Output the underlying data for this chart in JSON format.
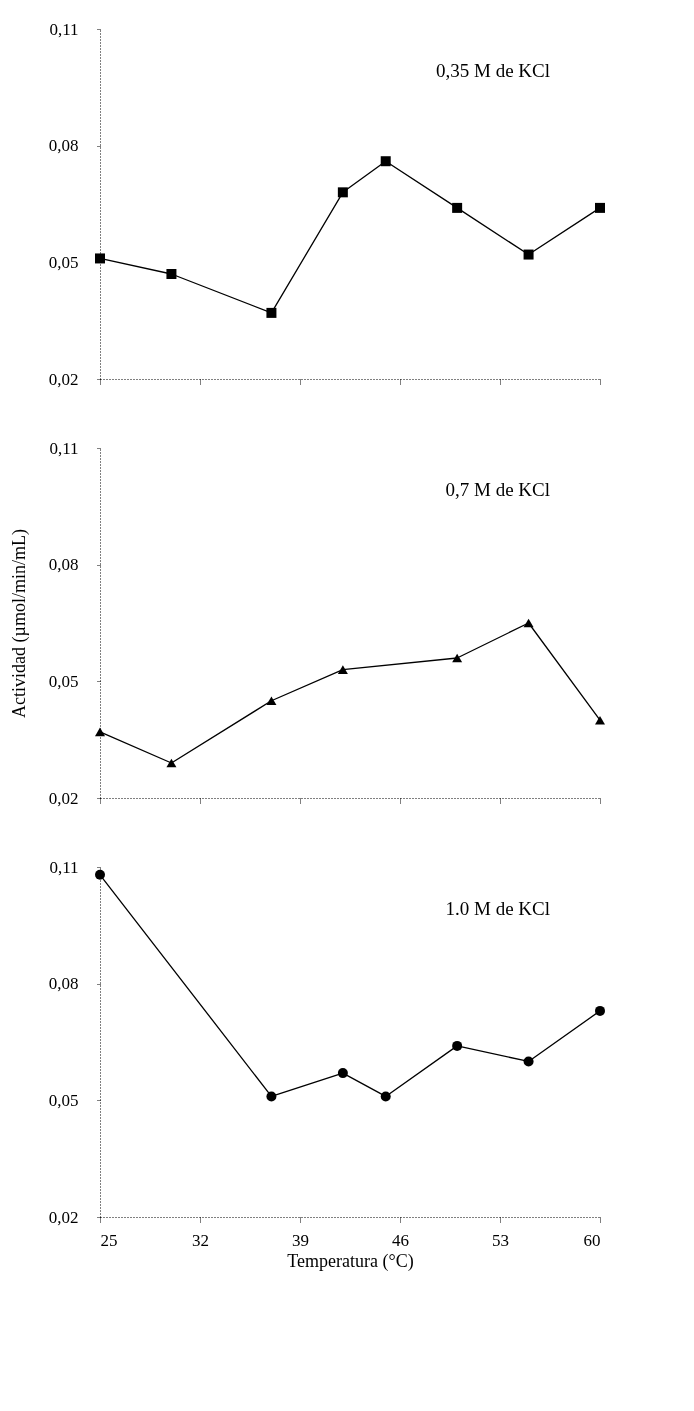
{
  "chart_data": [
    {
      "type": "line",
      "x": [
        25,
        30,
        37,
        42,
        45,
        50,
        55,
        60
      ],
      "values": [
        0.051,
        0.047,
        0.037,
        0.068,
        0.076,
        0.064,
        0.052,
        0.064
      ],
      "color": "#000000",
      "marker": "square",
      "line_style": "solid",
      "xlim": [
        25,
        60
      ],
      "xticks": [
        25,
        32,
        39,
        46,
        53,
        60
      ],
      "ylim": [
        0.02,
        0.11
      ],
      "yticks": [
        {
          "value": 0.02,
          "label": "0,02"
        },
        {
          "value": 0.05,
          "label": "0,05"
        },
        {
          "value": 0.08,
          "label": "0,08"
        },
        {
          "value": 0.11,
          "label": "0,11"
        }
      ],
      "tick_labels": "y",
      "grid": false,
      "annotations": [
        "0,35 M de KCl"
      ]
    },
    {
      "type": "line",
      "x": [
        25,
        30,
        37,
        42,
        50,
        55,
        60
      ],
      "values": [
        0.037,
        0.029,
        0.045,
        0.053,
        0.056,
        0.065,
        0.04
      ],
      "color": "#000000",
      "marker": "triangle",
      "line_style": "solid",
      "xlim": [
        25,
        60
      ],
      "xticks": [
        25,
        32,
        39,
        46,
        53,
        60
      ],
      "ylim": [
        0.02,
        0.11
      ],
      "yticks": [
        {
          "value": 0.02,
          "label": "0,02"
        },
        {
          "value": 0.05,
          "label": "0,05"
        },
        {
          "value": 0.08,
          "label": "0,08"
        },
        {
          "value": 0.11,
          "label": "0,11"
        }
      ],
      "tick_labels": "y",
      "grid": false,
      "ylabel": "Actividad (µmol/min/mL)",
      "annotations": [
        "0,7  M de KCl"
      ]
    },
    {
      "type": "line",
      "x": [
        25,
        37,
        42,
        45,
        50,
        55,
        60
      ],
      "values": [
        0.108,
        0.051,
        0.057,
        0.051,
        0.064,
        0.06,
        0.073
      ],
      "color": "#000000",
      "marker": "circle",
      "line_style": "solid",
      "xlim": [
        25,
        60
      ],
      "xticks": [
        25,
        32,
        39,
        46,
        53,
        60
      ],
      "ylim": [
        0.02,
        0.11
      ],
      "yticks": [
        {
          "value": 0.02,
          "label": "0,02"
        },
        {
          "value": 0.05,
          "label": "0,05"
        },
        {
          "value": 0.08,
          "label": "0,08"
        },
        {
          "value": 0.11,
          "label": "0,11"
        }
      ],
      "grid": false,
      "xlabel": "Temperatura (°C)",
      "annotations": [
        "1.0  M de KCl"
      ]
    }
  ]
}
